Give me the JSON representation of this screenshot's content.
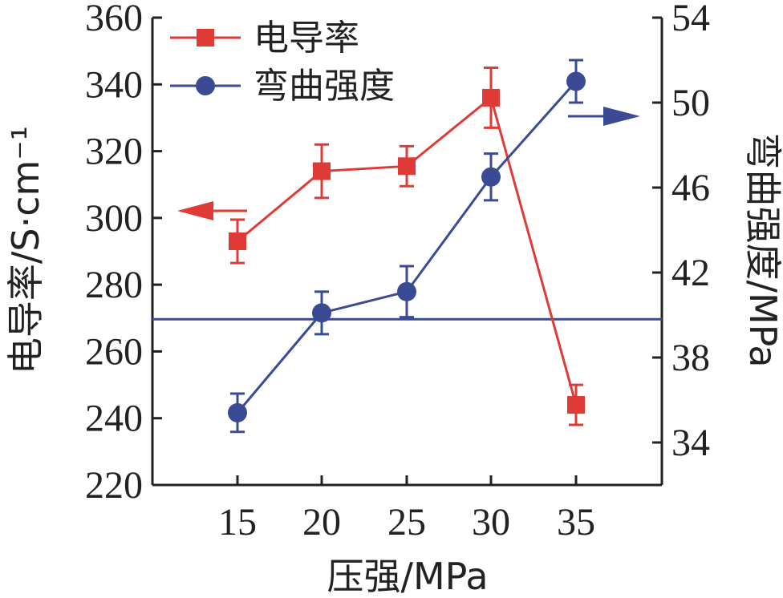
{
  "chart_data": {
    "type": "line",
    "x_axis": {
      "label": "压强/MPa",
      "categories": [
        15,
        20,
        25,
        30,
        35
      ],
      "tick_labels": [
        "15",
        "20",
        "25",
        "30",
        "35"
      ]
    },
    "y_left": {
      "label": "电导率/S·cm⁻¹",
      "range": [
        220,
        360
      ],
      "tick_labels": [
        "220",
        "240",
        "260",
        "280",
        "300",
        "320",
        "340",
        "360"
      ]
    },
    "y_right": {
      "label": "弯曲强度/MPa",
      "range": [
        32,
        54
      ],
      "tick_labels": [
        "34",
        "38",
        "42",
        "46",
        "50",
        "54"
      ]
    },
    "series": [
      {
        "name": "电导率",
        "axis": "left",
        "marker": "square",
        "color": "#e03a37",
        "x": [
          15,
          20,
          25,
          30,
          35
        ],
        "values": [
          293,
          314,
          315.5,
          336,
          244
        ],
        "errors": [
          6.5,
          8,
          6,
          9,
          6
        ]
      },
      {
        "name": "弯曲强度",
        "axis": "right",
        "marker": "circle",
        "color": "#3b4a94",
        "x": [
          15,
          20,
          25,
          30,
          35
        ],
        "values": [
          35.4,
          40.1,
          41.1,
          46.5,
          51
        ],
        "errors": [
          0.9,
          1.0,
          1.2,
          1.1,
          1.0
        ]
      }
    ],
    "reference_line": {
      "axis": "right",
      "value": 39.8,
      "color": "#3b4a94"
    },
    "arrows": [
      {
        "series": "电导率",
        "direction": "left",
        "color": "#e03a37"
      },
      {
        "series": "弯曲强度",
        "direction": "right",
        "color": "#3b4a94"
      }
    ],
    "legend": {
      "placement": "top-left"
    },
    "grid": false
  }
}
